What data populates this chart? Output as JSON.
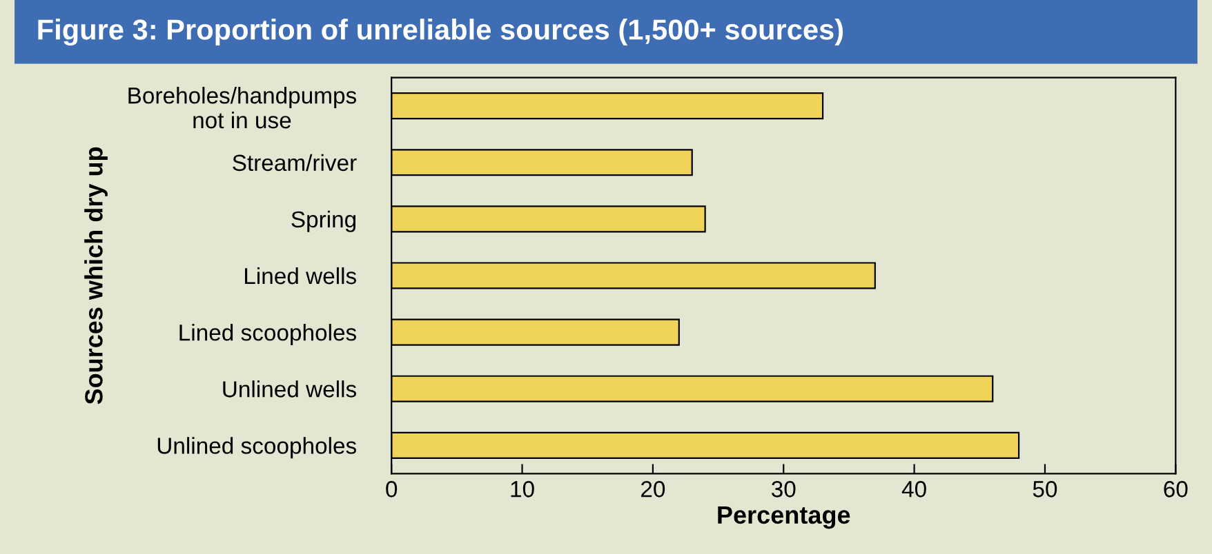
{
  "chart_data": {
    "type": "bar",
    "orientation": "horizontal",
    "title": "Figure 3: Proportion of unreliable sources (1,500+ sources)",
    "xlabel": "Percentage",
    "ylabel": "Sources which dry up",
    "categories": [
      "Boreholes/handpumps\nnot in use",
      "Stream/river",
      "Spring",
      "Lined wells",
      "Lined scoopholes",
      "Unlined wells",
      "Unlined scoopholes"
    ],
    "values": [
      33,
      23,
      24,
      37,
      22,
      46,
      48
    ],
    "color": "#f0d45a",
    "xlim": [
      0,
      60
    ],
    "xticks": [
      0,
      10,
      20,
      30,
      40,
      50,
      60
    ],
    "grid": false,
    "legend": false
  }
}
